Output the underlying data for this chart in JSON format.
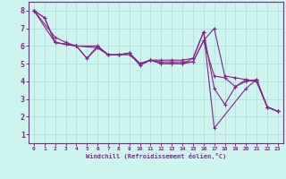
{
  "background_color": "#cdf4ef",
  "line_color": "#882288",
  "grid_color": "#aad8d8",
  "xlabel": "Windchill (Refroidissement éolien,°C)",
  "xlim": [
    -0.5,
    23.5
  ],
  "ylim": [
    0.5,
    8.5
  ],
  "xticks": [
    0,
    1,
    2,
    3,
    4,
    5,
    6,
    7,
    8,
    9,
    10,
    11,
    12,
    13,
    14,
    15,
    16,
    17,
    18,
    19,
    20,
    21,
    22,
    23
  ],
  "yticks": [
    1,
    2,
    3,
    4,
    5,
    6,
    7,
    8
  ],
  "lines": [
    {
      "x": [
        0,
        1,
        2,
        3,
        4,
        6,
        7,
        8,
        9,
        10,
        11,
        12,
        13,
        14,
        15,
        16,
        17,
        20,
        21,
        22,
        23
      ],
      "y": [
        8.0,
        7.6,
        6.2,
        6.1,
        6.0,
        5.9,
        5.5,
        5.5,
        5.6,
        4.9,
        5.2,
        5.2,
        5.2,
        5.2,
        5.3,
        6.8,
        1.35,
        3.6,
        4.1,
        2.55,
        2.3
      ]
    },
    {
      "x": [
        0,
        1,
        2,
        3,
        4,
        5,
        6,
        7,
        8,
        9,
        10,
        11,
        12,
        13,
        14,
        15,
        16,
        17,
        18,
        19,
        20,
        21,
        22,
        23
      ],
      "y": [
        8.0,
        7.6,
        6.2,
        6.1,
        6.0,
        5.3,
        5.9,
        5.5,
        5.5,
        5.6,
        5.0,
        5.2,
        5.1,
        5.1,
        5.1,
        5.1,
        6.3,
        4.3,
        4.2,
        3.7,
        4.0,
        4.1,
        2.55,
        2.3
      ]
    },
    {
      "x": [
        0,
        2,
        3,
        4,
        6,
        7,
        8,
        9,
        10,
        11,
        12,
        13,
        14,
        15,
        16,
        17,
        18,
        19,
        20,
        21,
        22,
        23
      ],
      "y": [
        8.0,
        6.5,
        6.2,
        6.0,
        6.0,
        5.5,
        5.5,
        5.5,
        5.0,
        5.2,
        5.0,
        5.0,
        5.0,
        5.1,
        6.3,
        7.0,
        4.3,
        4.2,
        4.1,
        4.0,
        2.55,
        2.3
      ]
    },
    {
      "x": [
        0,
        2,
        3,
        4,
        5,
        6,
        7,
        8,
        9,
        10,
        11,
        12,
        13,
        14,
        15,
        16,
        17,
        18,
        19,
        20,
        21,
        22,
        23
      ],
      "y": [
        8.0,
        6.2,
        6.1,
        6.0,
        5.3,
        6.0,
        5.5,
        5.5,
        5.6,
        5.0,
        5.2,
        5.0,
        5.0,
        5.0,
        5.3,
        6.8,
        3.6,
        2.7,
        3.7,
        4.1,
        4.0,
        2.55,
        2.3
      ]
    }
  ]
}
